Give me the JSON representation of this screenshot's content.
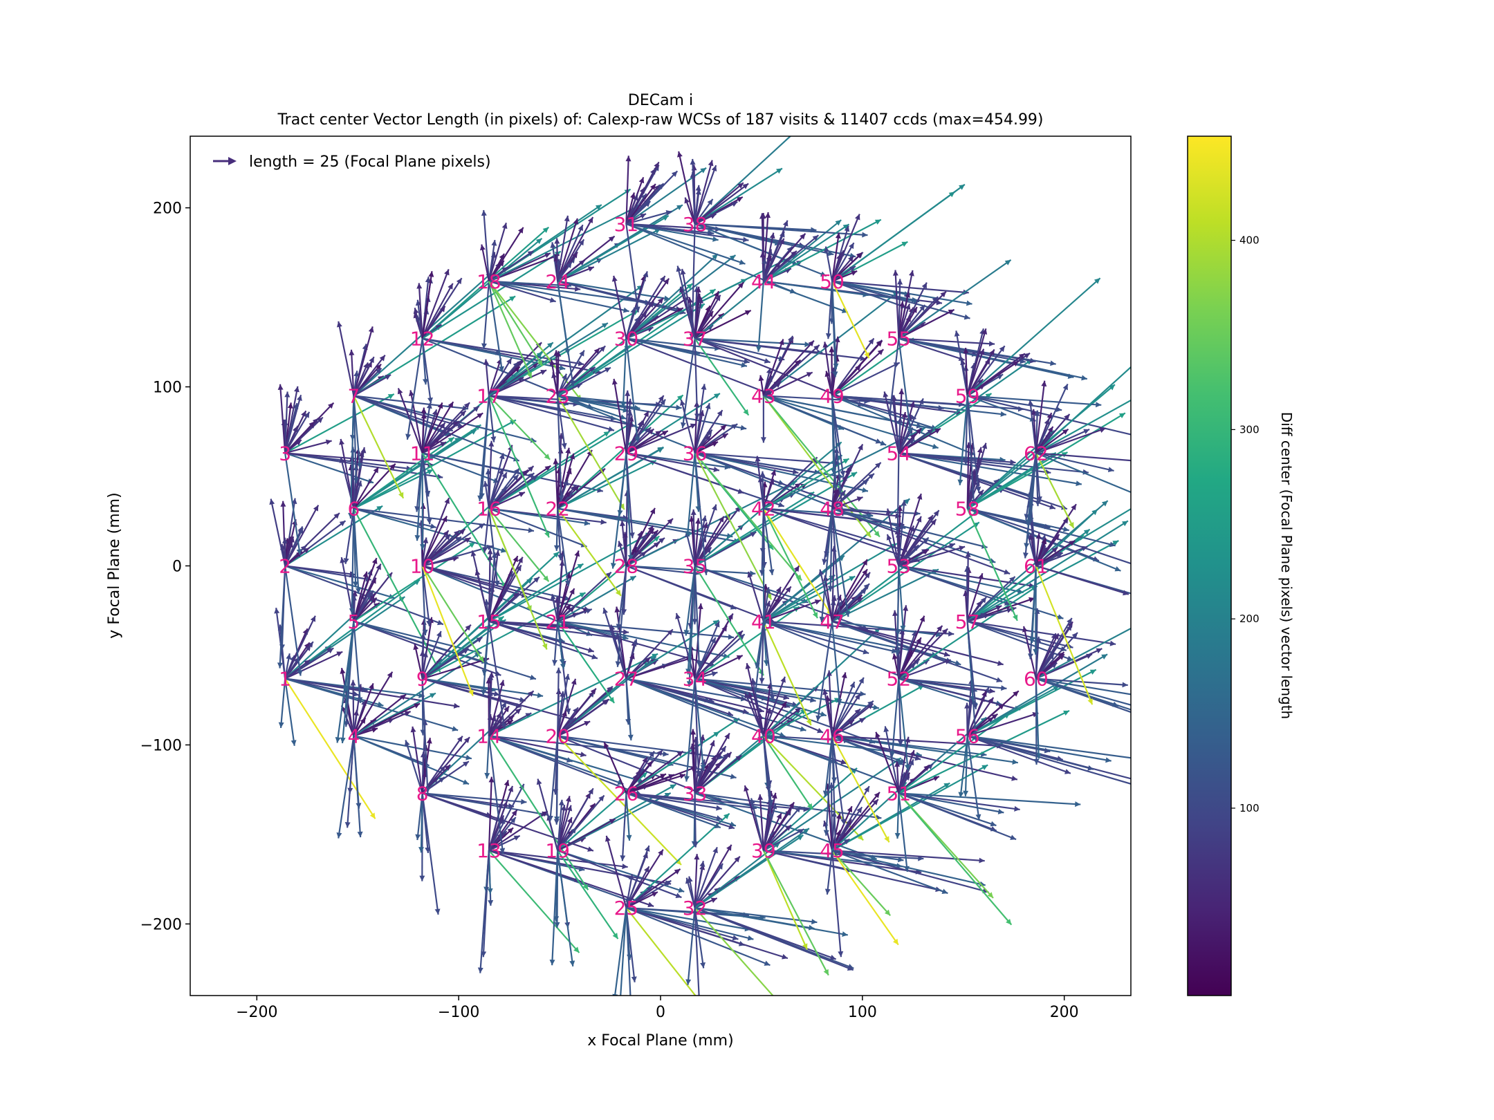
{
  "chart_data": {
    "type": "quiver",
    "title": "DECam i",
    "subtitle": "Tract center Vector Length (in pixels) of: Calexp-raw WCSs of 187 visits & 11407 ccds (max=454.99)",
    "xlabel": "x Focal Plane (mm)",
    "ylabel": "y Focal Plane (mm)",
    "xlim": [
      -233,
      233
    ],
    "ylim": [
      -240,
      240
    ],
    "x_ticks": [
      -200,
      -100,
      0,
      100,
      200
    ],
    "y_ticks": [
      -200,
      -100,
      0,
      100,
      200
    ],
    "x_tick_labels": [
      "−200",
      "−100",
      "0",
      "100",
      "200"
    ],
    "y_tick_labels": [
      "−200",
      "−100",
      "0",
      "100",
      "200"
    ],
    "legend": {
      "label": "length = 25 (Focal Plane pixels)",
      "position": "upper-left",
      "color": "#472d7b"
    },
    "colorbar": {
      "label": "Diff center (Focal Plane pixels) vector length",
      "range": [
        1,
        455
      ],
      "ticks": [
        100,
        200,
        300,
        400
      ],
      "tick_labels": [
        "100",
        "200",
        "300",
        "400"
      ],
      "colormap": "viridis"
    },
    "label_color": "#e8188a",
    "ccds": [
      {
        "id": "1",
        "x": -186,
        "y": -63
      },
      {
        "id": "2",
        "x": -186,
        "y": 0
      },
      {
        "id": "3",
        "x": -186,
        "y": 63
      },
      {
        "id": "4",
        "x": -152,
        "y": -95
      },
      {
        "id": "5",
        "x": -152,
        "y": -31
      },
      {
        "id": "6",
        "x": -152,
        "y": 32
      },
      {
        "id": "7",
        "x": -152,
        "y": 95
      },
      {
        "id": "8",
        "x": -118,
        "y": -127
      },
      {
        "id": "9",
        "x": -118,
        "y": -63
      },
      {
        "id": "10",
        "x": -118,
        "y": 0
      },
      {
        "id": "11",
        "x": -118,
        "y": 63
      },
      {
        "id": "12",
        "x": -118,
        "y": 127
      },
      {
        "id": "13",
        "x": -85,
        "y": -159
      },
      {
        "id": "14",
        "x": -85,
        "y": -95
      },
      {
        "id": "15",
        "x": -85,
        "y": -31
      },
      {
        "id": "16",
        "x": -85,
        "y": 32
      },
      {
        "id": "17",
        "x": -85,
        "y": 95
      },
      {
        "id": "18",
        "x": -85,
        "y": 159
      },
      {
        "id": "19",
        "x": -51,
        "y": -159
      },
      {
        "id": "20",
        "x": -51,
        "y": -95
      },
      {
        "id": "21",
        "x": -51,
        "y": -31
      },
      {
        "id": "22",
        "x": -51,
        "y": 32
      },
      {
        "id": "23",
        "x": -51,
        "y": 95
      },
      {
        "id": "24",
        "x": -51,
        "y": 159
      },
      {
        "id": "25",
        "x": -17,
        "y": -191
      },
      {
        "id": "26",
        "x": -17,
        "y": -127
      },
      {
        "id": "27",
        "x": -17,
        "y": -63
      },
      {
        "id": "28",
        "x": -17,
        "y": 0
      },
      {
        "id": "29",
        "x": -17,
        "y": 63
      },
      {
        "id": "30",
        "x": -17,
        "y": 127
      },
      {
        "id": "31",
        "x": -17,
        "y": 191
      },
      {
        "id": "32",
        "x": 17,
        "y": -191
      },
      {
        "id": "33",
        "x": 17,
        "y": -127
      },
      {
        "id": "34",
        "x": 17,
        "y": -63
      },
      {
        "id": "35",
        "x": 17,
        "y": 0
      },
      {
        "id": "36",
        "x": 17,
        "y": 63
      },
      {
        "id": "37",
        "x": 17,
        "y": 127
      },
      {
        "id": "38",
        "x": 17,
        "y": 191
      },
      {
        "id": "39",
        "x": 51,
        "y": -159
      },
      {
        "id": "40",
        "x": 51,
        "y": -95
      },
      {
        "id": "41",
        "x": 51,
        "y": -31
      },
      {
        "id": "42",
        "x": 51,
        "y": 32
      },
      {
        "id": "43",
        "x": 51,
        "y": 95
      },
      {
        "id": "44",
        "x": 51,
        "y": 159
      },
      {
        "id": "45",
        "x": 85,
        "y": -159
      },
      {
        "id": "46",
        "x": 85,
        "y": -95
      },
      {
        "id": "47",
        "x": 85,
        "y": -31
      },
      {
        "id": "48",
        "x": 85,
        "y": 32
      },
      {
        "id": "49",
        "x": 85,
        "y": 95
      },
      {
        "id": "50",
        "x": 85,
        "y": 159
      },
      {
        "id": "51",
        "x": 118,
        "y": -127
      },
      {
        "id": "52",
        "x": 118,
        "y": -63
      },
      {
        "id": "53",
        "x": 118,
        "y": 0
      },
      {
        "id": "54",
        "x": 118,
        "y": 63
      },
      {
        "id": "55",
        "x": 118,
        "y": 127
      },
      {
        "id": "56",
        "x": 152,
        "y": -95
      },
      {
        "id": "57",
        "x": 152,
        "y": -31
      },
      {
        "id": "58",
        "x": 152,
        "y": 32
      },
      {
        "id": "59",
        "x": 152,
        "y": 95
      },
      {
        "id": "60",
        "x": 186,
        "y": -63
      },
      {
        "id": "61",
        "x": 186,
        "y": 0
      },
      {
        "id": "62",
        "x": 186,
        "y": 63
      }
    ]
  }
}
